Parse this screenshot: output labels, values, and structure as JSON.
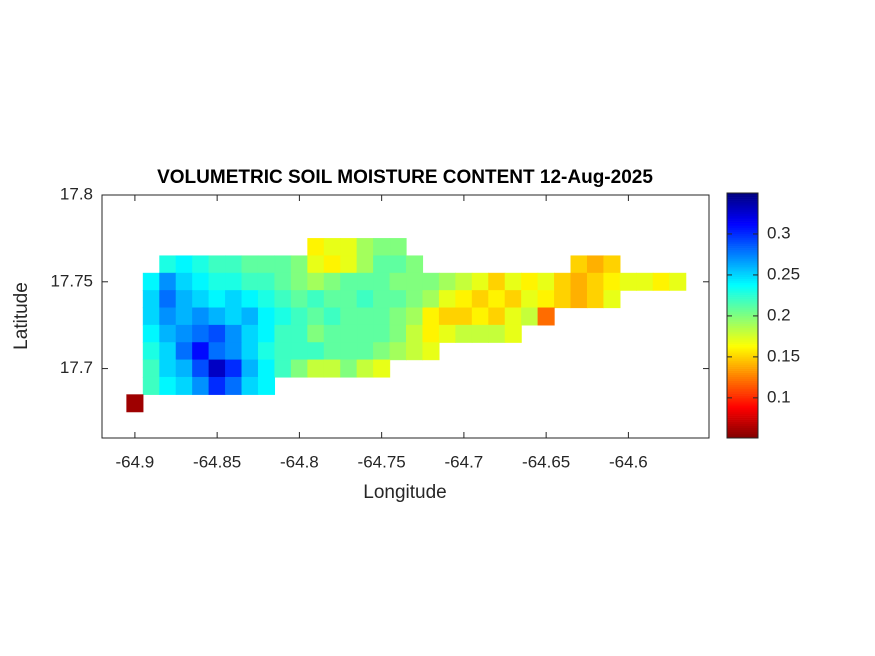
{
  "chart_data": {
    "type": "heatmap",
    "title": "VOLUMETRIC SOIL MOISTURE CONTENT 12-Aug-2025",
    "xlabel": "Longitude",
    "ylabel": "Latitude",
    "x": [
      -64.9,
      -64.89,
      -64.88,
      -64.87,
      -64.86,
      -64.85,
      -64.84,
      -64.83,
      -64.82,
      -64.81,
      -64.8,
      -64.79,
      -64.78,
      -64.77,
      -64.76,
      -64.75,
      -64.74,
      -64.73,
      -64.72,
      -64.71,
      -64.7,
      -64.69,
      -64.68,
      -64.67,
      -64.66,
      -64.65,
      -64.64,
      -64.63,
      -64.62,
      -64.61,
      -64.6,
      -64.59,
      -64.58,
      -64.57
    ],
    "y": [
      17.77,
      17.76,
      17.75,
      17.74,
      17.73,
      17.72,
      17.71,
      17.7,
      17.69,
      17.68
    ],
    "z": [
      [
        null,
        null,
        null,
        null,
        null,
        null,
        null,
        null,
        null,
        null,
        null,
        0.16,
        0.17,
        0.17,
        0.19,
        0.2,
        0.2,
        null,
        null,
        null,
        null,
        null,
        null,
        null,
        null,
        null,
        null,
        null,
        null,
        null,
        null,
        null,
        null,
        null
      ],
      [
        null,
        null,
        0.23,
        0.24,
        0.23,
        0.22,
        0.22,
        0.21,
        0.21,
        0.21,
        0.2,
        0.17,
        0.16,
        0.17,
        0.19,
        0.21,
        0.21,
        0.2,
        null,
        null,
        null,
        null,
        null,
        null,
        null,
        null,
        null,
        0.15,
        0.14,
        0.15,
        null,
        null,
        null,
        null
      ],
      [
        null,
        0.24,
        0.27,
        0.25,
        0.24,
        0.23,
        0.23,
        0.22,
        0.22,
        0.21,
        0.2,
        0.19,
        0.2,
        0.21,
        0.21,
        0.21,
        0.2,
        0.2,
        0.2,
        0.19,
        0.18,
        0.17,
        0.15,
        0.17,
        0.16,
        0.17,
        0.15,
        0.14,
        0.15,
        0.16,
        0.17,
        0.17,
        0.16,
        0.17
      ],
      [
        null,
        0.25,
        0.28,
        0.26,
        0.25,
        0.24,
        0.25,
        0.24,
        0.23,
        0.22,
        0.21,
        0.22,
        0.21,
        0.21,
        0.22,
        0.21,
        0.21,
        0.2,
        0.19,
        0.17,
        0.16,
        0.15,
        0.16,
        0.15,
        0.17,
        0.16,
        0.15,
        0.14,
        0.15,
        0.17,
        null,
        null,
        null,
        null
      ],
      [
        null,
        0.25,
        0.27,
        0.26,
        0.27,
        0.26,
        0.25,
        0.26,
        0.24,
        0.23,
        0.22,
        0.21,
        0.22,
        0.21,
        0.21,
        0.21,
        0.2,
        0.19,
        0.16,
        0.15,
        0.15,
        0.16,
        0.15,
        0.17,
        0.18,
        0.12,
        null,
        null,
        null,
        null,
        null,
        null,
        null,
        null
      ],
      [
        null,
        0.24,
        0.26,
        0.27,
        0.28,
        0.29,
        0.27,
        0.25,
        0.24,
        0.22,
        0.22,
        0.2,
        0.21,
        0.21,
        0.21,
        0.21,
        0.2,
        0.18,
        0.16,
        0.17,
        0.18,
        0.18,
        0.18,
        0.17,
        null,
        null,
        null,
        null,
        null,
        null,
        null,
        null,
        null,
        null
      ],
      [
        null,
        0.23,
        0.25,
        0.28,
        0.31,
        0.28,
        0.27,
        0.25,
        0.23,
        0.22,
        0.22,
        0.22,
        0.21,
        0.21,
        0.21,
        0.2,
        0.19,
        0.18,
        0.17,
        null,
        null,
        null,
        null,
        null,
        null,
        null,
        null,
        null,
        null,
        null,
        null,
        null,
        null,
        null
      ],
      [
        null,
        0.22,
        0.25,
        0.26,
        0.29,
        0.33,
        0.3,
        0.26,
        0.24,
        0.22,
        0.2,
        0.18,
        0.18,
        0.2,
        0.18,
        0.17,
        null,
        null,
        null,
        null,
        null,
        null,
        null,
        null,
        null,
        null,
        null,
        null,
        null,
        null,
        null,
        null,
        null,
        null
      ],
      [
        null,
        0.22,
        0.24,
        0.25,
        0.27,
        0.3,
        0.28,
        0.25,
        0.24,
        null,
        null,
        null,
        null,
        null,
        null,
        null,
        null,
        null,
        null,
        null,
        null,
        null,
        null,
        null,
        null,
        null,
        null,
        null,
        null,
        null,
        null,
        null,
        null,
        null
      ],
      [
        0.06,
        null,
        null,
        null,
        null,
        null,
        null,
        null,
        null,
        null,
        null,
        null,
        null,
        null,
        null,
        null,
        null,
        null,
        null,
        null,
        null,
        null,
        null,
        null,
        null,
        null,
        null,
        null,
        null,
        null,
        null,
        null,
        null,
        null
      ]
    ],
    "xlim": [
      -64.92,
      -64.551
    ],
    "ylim": [
      17.66,
      17.8
    ],
    "xticks": [
      -64.9,
      -64.85,
      -64.8,
      -64.75,
      -64.7,
      -64.65,
      -64.6
    ],
    "yticks": [
      17.7,
      17.75,
      17.8
    ],
    "clim": [
      0.051,
      0.35
    ],
    "cticks": [
      0.1,
      0.15,
      0.2,
      0.25,
      0.3
    ],
    "colormap": "jet",
    "colormap_reversed": true
  }
}
